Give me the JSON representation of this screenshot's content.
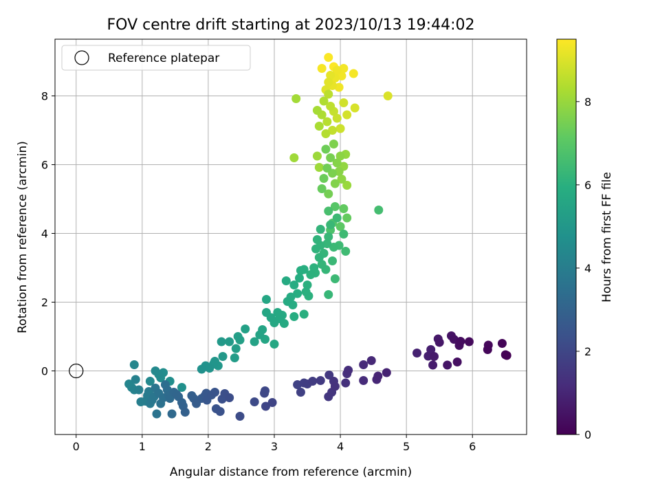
{
  "chart_data": {
    "type": "scatter",
    "title": "FOV centre drift starting at 2023/10/13 19:44:02",
    "xlabel": "Angular distance from reference (arcmin)",
    "ylabel": "Rotation from reference (arcmin)",
    "xlim": [
      -0.32,
      6.82
    ],
    "ylim": [
      -1.85,
      9.65
    ],
    "xticks": [
      0,
      1,
      2,
      3,
      4,
      5,
      6
    ],
    "yticks": [
      0,
      2,
      4,
      6,
      8
    ],
    "grid": true,
    "legend": {
      "placement": "top-left",
      "entries": [
        "Reference platepar"
      ]
    },
    "reference_point": {
      "x": 0,
      "y": 0
    },
    "colorbar": {
      "label": "Hours from first FF file",
      "range": [
        0,
        9.5
      ],
      "ticks": [
        0,
        2,
        4,
        6,
        8
      ],
      "colormap": "viridis"
    },
    "points": [
      {
        "x": 6.52,
        "y": 0.45,
        "t": 0.0
      },
      {
        "x": 6.5,
        "y": 0.47,
        "t": 0.05
      },
      {
        "x": 6.45,
        "y": 0.8,
        "t": 0.1
      },
      {
        "x": 6.23,
        "y": 0.62,
        "t": 0.15
      },
      {
        "x": 6.24,
        "y": 0.75,
        "t": 0.2
      },
      {
        "x": 5.95,
        "y": 0.85,
        "t": 0.25
      },
      {
        "x": 5.82,
        "y": 0.86,
        "t": 0.3
      },
      {
        "x": 5.8,
        "y": 0.74,
        "t": 0.35
      },
      {
        "x": 5.77,
        "y": 0.26,
        "t": 0.4
      },
      {
        "x": 5.72,
        "y": 0.92,
        "t": 0.45
      },
      {
        "x": 5.68,
        "y": 1.02,
        "t": 0.5
      },
      {
        "x": 5.62,
        "y": 0.17,
        "t": 0.55
      },
      {
        "x": 5.5,
        "y": 0.83,
        "t": 0.6
      },
      {
        "x": 5.48,
        "y": 0.93,
        "t": 0.65
      },
      {
        "x": 5.42,
        "y": 0.42,
        "t": 0.7
      },
      {
        "x": 5.4,
        "y": 0.17,
        "t": 0.75
      },
      {
        "x": 5.37,
        "y": 0.62,
        "t": 0.8
      },
      {
        "x": 5.33,
        "y": 0.43,
        "t": 0.85
      },
      {
        "x": 5.16,
        "y": 0.52,
        "t": 0.9
      },
      {
        "x": 4.7,
        "y": -0.05,
        "t": 0.95
      },
      {
        "x": 4.57,
        "y": -0.15,
        "t": 1.0
      },
      {
        "x": 4.55,
        "y": -0.25,
        "t": 1.05
      },
      {
        "x": 4.47,
        "y": 0.3,
        "t": 1.1
      },
      {
        "x": 4.35,
        "y": 0.18,
        "t": 1.15
      },
      {
        "x": 4.35,
        "y": -0.28,
        "t": 1.2
      },
      {
        "x": 4.12,
        "y": 0.02,
        "t": 1.25
      },
      {
        "x": 4.1,
        "y": -0.08,
        "t": 1.3
      },
      {
        "x": 4.08,
        "y": -0.35,
        "t": 1.35
      },
      {
        "x": 3.92,
        "y": -0.45,
        "t": 1.4
      },
      {
        "x": 3.9,
        "y": -0.3,
        "t": 1.45
      },
      {
        "x": 3.87,
        "y": -0.62,
        "t": 1.5
      },
      {
        "x": 3.82,
        "y": -0.75,
        "t": 1.55
      },
      {
        "x": 3.83,
        "y": -0.12,
        "t": 1.6
      },
      {
        "x": 3.7,
        "y": -0.28,
        "t": 1.65
      },
      {
        "x": 3.58,
        "y": -0.3,
        "t": 1.7
      },
      {
        "x": 3.5,
        "y": -0.38,
        "t": 1.75
      },
      {
        "x": 3.45,
        "y": -0.35,
        "t": 1.8
      },
      {
        "x": 3.4,
        "y": -0.62,
        "t": 1.85
      },
      {
        "x": 3.35,
        "y": -0.4,
        "t": 1.9
      },
      {
        "x": 2.97,
        "y": -0.92,
        "t": 1.95
      },
      {
        "x": 2.87,
        "y": -1.03,
        "t": 2.0
      },
      {
        "x": 2.85,
        "y": -0.65,
        "t": 2.05
      },
      {
        "x": 2.86,
        "y": -0.58,
        "t": 2.1
      },
      {
        "x": 2.7,
        "y": -0.9,
        "t": 2.15
      },
      {
        "x": 2.48,
        "y": -1.32,
        "t": 2.2
      },
      {
        "x": 2.32,
        "y": -0.78,
        "t": 2.25
      },
      {
        "x": 2.25,
        "y": -0.66,
        "t": 2.3
      },
      {
        "x": 2.21,
        "y": -0.82,
        "t": 2.35
      },
      {
        "x": 2.18,
        "y": -1.18,
        "t": 2.4
      },
      {
        "x": 2.12,
        "y": -1.1,
        "t": 2.45
      },
      {
        "x": 2.1,
        "y": -0.62,
        "t": 2.5
      },
      {
        "x": 2.05,
        "y": -0.7,
        "t": 2.55
      },
      {
        "x": 1.98,
        "y": -0.85,
        "t": 2.6
      },
      {
        "x": 1.97,
        "y": -0.65,
        "t": 2.65
      },
      {
        "x": 1.95,
        "y": -0.72,
        "t": 2.7
      },
      {
        "x": 1.9,
        "y": -0.8,
        "t": 2.75
      },
      {
        "x": 1.82,
        "y": -0.95,
        "t": 2.8
      },
      {
        "x": 1.78,
        "y": -0.8,
        "t": 2.85
      },
      {
        "x": 1.75,
        "y": -0.72,
        "t": 2.9
      },
      {
        "x": 1.65,
        "y": -1.2,
        "t": 2.95
      },
      {
        "x": 1.62,
        "y": -1.02,
        "t": 3.0
      },
      {
        "x": 1.6,
        "y": -0.92,
        "t": 3.05
      },
      {
        "x": 1.55,
        "y": -0.75,
        "t": 3.1
      },
      {
        "x": 1.52,
        "y": -0.68,
        "t": 3.15
      },
      {
        "x": 1.48,
        "y": -0.62,
        "t": 3.2
      },
      {
        "x": 1.45,
        "y": -1.25,
        "t": 3.25
      },
      {
        "x": 1.42,
        "y": -0.8,
        "t": 3.3
      },
      {
        "x": 1.4,
        "y": -0.7,
        "t": 3.35
      },
      {
        "x": 1.38,
        "y": -0.55,
        "t": 3.4
      },
      {
        "x": 1.35,
        "y": -0.4,
        "t": 3.45
      },
      {
        "x": 1.32,
        "y": -0.78,
        "t": 3.5
      },
      {
        "x": 1.28,
        "y": -0.95,
        "t": 3.55
      },
      {
        "x": 1.25,
        "y": -0.65,
        "t": 3.6
      },
      {
        "x": 1.22,
        "y": -1.25,
        "t": 3.65
      },
      {
        "x": 1.2,
        "y": -0.5,
        "t": 3.7
      },
      {
        "x": 1.18,
        "y": -0.75,
        "t": 3.75
      },
      {
        "x": 1.15,
        "y": -0.85,
        "t": 3.8
      },
      {
        "x": 1.12,
        "y": -0.95,
        "t": 3.85
      },
      {
        "x": 1.1,
        "y": -0.6,
        "t": 3.9
      },
      {
        "x": 1.08,
        "y": -0.72,
        "t": 3.95
      },
      {
        "x": 1.05,
        "y": -0.88,
        "t": 4.0
      },
      {
        "x": 0.98,
        "y": -0.9,
        "t": 4.05
      },
      {
        "x": 0.95,
        "y": -0.55,
        "t": 4.1
      },
      {
        "x": 0.9,
        "y": -0.25,
        "t": 4.15
      },
      {
        "x": 0.88,
        "y": -0.55,
        "t": 4.2
      },
      {
        "x": 0.84,
        "y": -0.48,
        "t": 4.25
      },
      {
        "x": 0.8,
        "y": -0.38,
        "t": 4.3
      },
      {
        "x": 0.88,
        "y": 0.18,
        "t": 4.35
      },
      {
        "x": 1.12,
        "y": -0.3,
        "t": 4.4
      },
      {
        "x": 1.2,
        "y": 0.0,
        "t": 4.45
      },
      {
        "x": 1.25,
        "y": -0.1,
        "t": 4.5
      },
      {
        "x": 1.28,
        "y": -0.2,
        "t": 4.55
      },
      {
        "x": 1.32,
        "y": -0.05,
        "t": 4.6
      },
      {
        "x": 1.42,
        "y": -0.3,
        "t": 4.65
      },
      {
        "x": 1.6,
        "y": -0.48,
        "t": 4.7
      },
      {
        "x": 1.9,
        "y": 0.05,
        "t": 4.75
      },
      {
        "x": 1.96,
        "y": 0.15,
        "t": 4.8
      },
      {
        "x": 2.02,
        "y": 0.08,
        "t": 4.85
      },
      {
        "x": 2.08,
        "y": 0.2,
        "t": 4.9
      },
      {
        "x": 2.1,
        "y": 0.28,
        "t": 4.95
      },
      {
        "x": 2.15,
        "y": 0.15,
        "t": 5.0
      },
      {
        "x": 2.22,
        "y": 0.42,
        "t": 5.05
      },
      {
        "x": 2.2,
        "y": 0.85,
        "t": 5.1
      },
      {
        "x": 2.32,
        "y": 0.85,
        "t": 5.15
      },
      {
        "x": 2.4,
        "y": 0.38,
        "t": 5.2
      },
      {
        "x": 2.42,
        "y": 0.65,
        "t": 5.25
      },
      {
        "x": 2.45,
        "y": 1.0,
        "t": 5.3
      },
      {
        "x": 2.48,
        "y": 0.9,
        "t": 5.35
      },
      {
        "x": 2.56,
        "y": 1.22,
        "t": 5.4
      },
      {
        "x": 2.7,
        "y": 0.85,
        "t": 5.45
      },
      {
        "x": 2.78,
        "y": 1.05,
        "t": 5.5
      },
      {
        "x": 2.82,
        "y": 1.2,
        "t": 5.55
      },
      {
        "x": 2.86,
        "y": 0.92,
        "t": 5.6
      },
      {
        "x": 2.88,
        "y": 1.7,
        "t": 5.62
      },
      {
        "x": 2.88,
        "y": 2.08,
        "t": 5.64
      },
      {
        "x": 2.95,
        "y": 1.55,
        "t": 5.66
      },
      {
        "x": 3.0,
        "y": 0.78,
        "t": 5.68
      },
      {
        "x": 3.0,
        "y": 1.4,
        "t": 5.7
      },
      {
        "x": 3.05,
        "y": 1.7,
        "t": 5.72
      },
      {
        "x": 3.08,
        "y": 1.52,
        "t": 5.74
      },
      {
        "x": 3.12,
        "y": 1.62,
        "t": 5.76
      },
      {
        "x": 3.15,
        "y": 1.38,
        "t": 5.78
      },
      {
        "x": 3.18,
        "y": 2.62,
        "t": 5.8
      },
      {
        "x": 3.2,
        "y": 2.02,
        "t": 5.82
      },
      {
        "x": 3.25,
        "y": 2.15,
        "t": 5.84
      },
      {
        "x": 3.28,
        "y": 1.92,
        "t": 5.86
      },
      {
        "x": 3.3,
        "y": 2.5,
        "t": 5.88
      },
      {
        "x": 3.3,
        "y": 1.58,
        "t": 5.9
      },
      {
        "x": 3.35,
        "y": 2.25,
        "t": 5.92
      },
      {
        "x": 3.38,
        "y": 2.7,
        "t": 5.94
      },
      {
        "x": 3.4,
        "y": 2.92,
        "t": 5.96
      },
      {
        "x": 3.45,
        "y": 2.95,
        "t": 5.98
      },
      {
        "x": 3.45,
        "y": 1.65,
        "t": 6.0
      },
      {
        "x": 3.48,
        "y": 2.3,
        "t": 6.02
      },
      {
        "x": 3.5,
        "y": 2.5,
        "t": 6.04
      },
      {
        "x": 3.52,
        "y": 2.18,
        "t": 6.06
      },
      {
        "x": 3.55,
        "y": 2.8,
        "t": 6.08
      },
      {
        "x": 3.6,
        "y": 3.0,
        "t": 6.1
      },
      {
        "x": 3.62,
        "y": 2.85,
        "t": 6.12
      },
      {
        "x": 3.63,
        "y": 3.55,
        "t": 6.14
      },
      {
        "x": 3.65,
        "y": 3.82,
        "t": 6.16
      },
      {
        "x": 3.68,
        "y": 3.3,
        "t": 6.18
      },
      {
        "x": 3.7,
        "y": 3.65,
        "t": 6.2
      },
      {
        "x": 3.7,
        "y": 4.12,
        "t": 6.22
      },
      {
        "x": 3.72,
        "y": 3.1,
        "t": 6.24
      },
      {
        "x": 3.75,
        "y": 3.42,
        "t": 6.26
      },
      {
        "x": 3.78,
        "y": 2.95,
        "t": 6.28
      },
      {
        "x": 3.8,
        "y": 3.7,
        "t": 6.3
      },
      {
        "x": 3.82,
        "y": 2.22,
        "t": 6.32
      },
      {
        "x": 3.82,
        "y": 3.9,
        "t": 6.34
      },
      {
        "x": 3.85,
        "y": 4.25,
        "t": 6.36
      },
      {
        "x": 3.88,
        "y": 3.2,
        "t": 6.38
      },
      {
        "x": 3.9,
        "y": 3.6,
        "t": 6.4
      },
      {
        "x": 3.92,
        "y": 2.68,
        "t": 6.42
      },
      {
        "x": 3.95,
        "y": 4.45,
        "t": 6.44
      },
      {
        "x": 3.98,
        "y": 3.65,
        "t": 6.46
      },
      {
        "x": 4.05,
        "y": 3.98,
        "t": 6.48
      },
      {
        "x": 4.08,
        "y": 3.48,
        "t": 6.5
      },
      {
        "x": 4.58,
        "y": 4.68,
        "t": 6.6
      },
      {
        "x": 3.82,
        "y": 4.65,
        "t": 6.7
      },
      {
        "x": 3.85,
        "y": 4.1,
        "t": 6.8
      },
      {
        "x": 3.88,
        "y": 4.3,
        "t": 6.9
      },
      {
        "x": 3.92,
        "y": 4.78,
        "t": 7.0
      },
      {
        "x": 4.0,
        "y": 4.2,
        "t": 7.1
      },
      {
        "x": 4.05,
        "y": 4.72,
        "t": 7.2
      },
      {
        "x": 4.1,
        "y": 4.45,
        "t": 7.25
      },
      {
        "x": 3.72,
        "y": 5.3,
        "t": 7.3
      },
      {
        "x": 3.75,
        "y": 5.6,
        "t": 7.35
      },
      {
        "x": 3.78,
        "y": 6.45,
        "t": 7.4
      },
      {
        "x": 3.8,
        "y": 5.9,
        "t": 7.45
      },
      {
        "x": 3.82,
        "y": 5.15,
        "t": 7.5
      },
      {
        "x": 3.85,
        "y": 6.2,
        "t": 7.55
      },
      {
        "x": 3.88,
        "y": 5.75,
        "t": 7.6
      },
      {
        "x": 3.9,
        "y": 6.6,
        "t": 7.65
      },
      {
        "x": 3.92,
        "y": 5.45,
        "t": 7.7
      },
      {
        "x": 3.95,
        "y": 6.05,
        "t": 7.75
      },
      {
        "x": 3.98,
        "y": 5.8,
        "t": 7.8
      },
      {
        "x": 4.0,
        "y": 6.25,
        "t": 7.85
      },
      {
        "x": 4.02,
        "y": 5.58,
        "t": 7.9
      },
      {
        "x": 4.05,
        "y": 5.95,
        "t": 7.95
      },
      {
        "x": 4.08,
        "y": 6.3,
        "t": 8.0
      },
      {
        "x": 4.1,
        "y": 5.4,
        "t": 8.05
      },
      {
        "x": 3.65,
        "y": 6.25,
        "t": 8.1
      },
      {
        "x": 3.68,
        "y": 5.92,
        "t": 8.12
      },
      {
        "x": 3.3,
        "y": 6.2,
        "t": 8.15
      },
      {
        "x": 3.33,
        "y": 7.92,
        "t": 8.2
      },
      {
        "x": 3.65,
        "y": 7.58,
        "t": 8.25
      },
      {
        "x": 3.68,
        "y": 7.12,
        "t": 8.3
      },
      {
        "x": 3.72,
        "y": 7.45,
        "t": 8.35
      },
      {
        "x": 3.75,
        "y": 7.85,
        "t": 8.4
      },
      {
        "x": 3.78,
        "y": 6.9,
        "t": 8.45
      },
      {
        "x": 3.8,
        "y": 7.25,
        "t": 8.5
      },
      {
        "x": 3.82,
        "y": 8.05,
        "t": 8.55
      },
      {
        "x": 3.85,
        "y": 7.7,
        "t": 8.6
      },
      {
        "x": 3.88,
        "y": 7.0,
        "t": 8.65
      },
      {
        "x": 3.9,
        "y": 7.55,
        "t": 8.7
      },
      {
        "x": 3.95,
        "y": 7.35,
        "t": 8.75
      },
      {
        "x": 4.0,
        "y": 7.05,
        "t": 8.8
      },
      {
        "x": 4.05,
        "y": 7.8,
        "t": 8.85
      },
      {
        "x": 4.1,
        "y": 7.45,
        "t": 8.9
      },
      {
        "x": 4.22,
        "y": 7.65,
        "t": 8.95
      },
      {
        "x": 4.72,
        "y": 8.0,
        "t": 9.0
      },
      {
        "x": 3.78,
        "y": 8.18,
        "t": 9.05
      },
      {
        "x": 3.82,
        "y": 8.4,
        "t": 9.1
      },
      {
        "x": 3.85,
        "y": 8.6,
        "t": 9.15
      },
      {
        "x": 3.88,
        "y": 8.3,
        "t": 9.2
      },
      {
        "x": 3.92,
        "y": 8.52,
        "t": 9.25
      },
      {
        "x": 3.95,
        "y": 8.75,
        "t": 9.3
      },
      {
        "x": 3.98,
        "y": 8.25,
        "t": 9.32
      },
      {
        "x": 4.02,
        "y": 8.58,
        "t": 9.34
      },
      {
        "x": 4.05,
        "y": 8.8,
        "t": 9.36
      },
      {
        "x": 4.2,
        "y": 8.65,
        "t": 9.38
      },
      {
        "x": 3.72,
        "y": 8.8,
        "t": 9.4
      },
      {
        "x": 3.82,
        "y": 9.12,
        "t": 9.45
      },
      {
        "x": 3.9,
        "y": 8.85,
        "t": 9.48
      }
    ]
  }
}
